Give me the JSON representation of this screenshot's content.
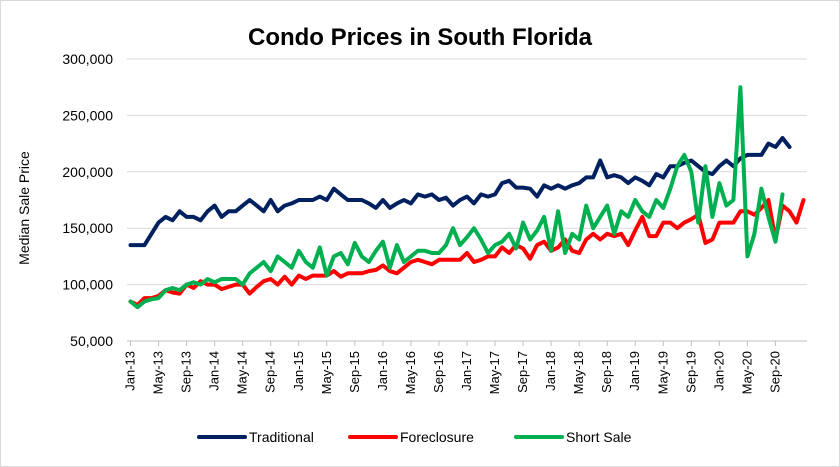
{
  "chart_data": {
    "type": "line",
    "title": "Condo Prices in South Florida",
    "xlabel": "",
    "ylabel": "Median Sale Price",
    "ylim": [
      50000,
      300000
    ],
    "yticks": [
      "50,000",
      "100,000",
      "150,000",
      "200,000",
      "250,000",
      "300,000"
    ],
    "ytick_values": [
      50000,
      100000,
      150000,
      200000,
      250000,
      300000
    ],
    "grid": true,
    "legend": "bottom",
    "x_start": "Jan-13",
    "x_tick_labels": [
      "Jan-13",
      "May-13",
      "Sep-13",
      "Jan-14",
      "May-14",
      "Sep-14",
      "Jan-15",
      "May-15",
      "Sep-15",
      "Jan-16",
      "May-16",
      "Sep-16",
      "Jan-17",
      "May-17",
      "Sep-17",
      "Jan-18",
      "May-18",
      "Sep-18",
      "Jan-19",
      "May-19",
      "Sep-19",
      "Jan-20",
      "May-20",
      "Sep-20"
    ],
    "series": [
      {
        "name": "Traditional",
        "color": "#002060",
        "values": [
          135000,
          135000,
          135000,
          145000,
          155000,
          160000,
          157000,
          165000,
          160000,
          160000,
          157000,
          165000,
          170000,
          160000,
          165000,
          165000,
          170000,
          175000,
          170000,
          165000,
          175000,
          165000,
          170000,
          172000,
          175000,
          175000,
          175000,
          178000,
          175000,
          185000,
          180000,
          175000,
          175000,
          175000,
          172000,
          168000,
          175000,
          168000,
          172000,
          175000,
          172000,
          180000,
          178000,
          180000,
          175000,
          177000,
          170000,
          175000,
          178000,
          172000,
          180000,
          178000,
          180000,
          190000,
          192000,
          186000,
          186000,
          185000,
          178000,
          188000,
          185000,
          188000,
          185000,
          188000,
          190000,
          195000,
          195000,
          210000,
          195000,
          197000,
          195000,
          190000,
          195000,
          192000,
          188000,
          198000,
          195000,
          205000,
          205000,
          208000,
          210000,
          205000,
          200000,
          198000,
          205000,
          210000,
          205000,
          212000,
          215000,
          215000,
          215000,
          225000,
          222000,
          230000,
          222000
        ]
      },
      {
        "name": "Foreclosure",
        "color": "#ff0000",
        "values": [
          85000,
          82000,
          88000,
          88000,
          90000,
          95000,
          93000,
          92000,
          100000,
          97000,
          103000,
          100000,
          100000,
          96000,
          98000,
          100000,
          100000,
          92000,
          98000,
          103000,
          105000,
          100000,
          107000,
          100000,
          108000,
          105000,
          108000,
          108000,
          108000,
          112000,
          107000,
          110000,
          110000,
          110000,
          112000,
          113000,
          117000,
          112000,
          110000,
          115000,
          120000,
          122000,
          120000,
          118000,
          122000,
          122000,
          122000,
          122000,
          128000,
          120000,
          122000,
          125000,
          125000,
          133000,
          128000,
          135000,
          132000,
          123000,
          135000,
          138000,
          130000,
          133000,
          140000,
          130000,
          128000,
          140000,
          145000,
          140000,
          145000,
          143000,
          145000,
          135000,
          148000,
          160000,
          143000,
          143000,
          155000,
          155000,
          150000,
          155000,
          158000,
          162000,
          137000,
          140000,
          155000,
          155000,
          155000,
          165000,
          165000,
          162000,
          168000,
          175000,
          140000,
          170000,
          165000,
          155000,
          175000
        ]
      },
      {
        "name": "Short Sale",
        "color": "#00b050",
        "values": [
          85000,
          80000,
          85000,
          87000,
          88000,
          95000,
          97000,
          95000,
          100000,
          102000,
          100000,
          105000,
          102000,
          105000,
          105000,
          105000,
          100000,
          110000,
          115000,
          120000,
          112000,
          125000,
          120000,
          115000,
          130000,
          120000,
          115000,
          133000,
          108000,
          125000,
          128000,
          118000,
          137000,
          125000,
          120000,
          130000,
          138000,
          115000,
          135000,
          120000,
          125000,
          130000,
          130000,
          128000,
          128000,
          135000,
          150000,
          135000,
          142000,
          150000,
          140000,
          128000,
          135000,
          138000,
          145000,
          132000,
          155000,
          140000,
          148000,
          160000,
          130000,
          165000,
          128000,
          145000,
          140000,
          170000,
          150000,
          160000,
          170000,
          145000,
          165000,
          160000,
          175000,
          165000,
          160000,
          175000,
          168000,
          185000,
          205000,
          215000,
          200000,
          155000,
          205000,
          160000,
          190000,
          170000,
          175000,
          275000,
          125000,
          145000,
          185000,
          160000,
          138000,
          180000
        ]
      }
    ]
  }
}
